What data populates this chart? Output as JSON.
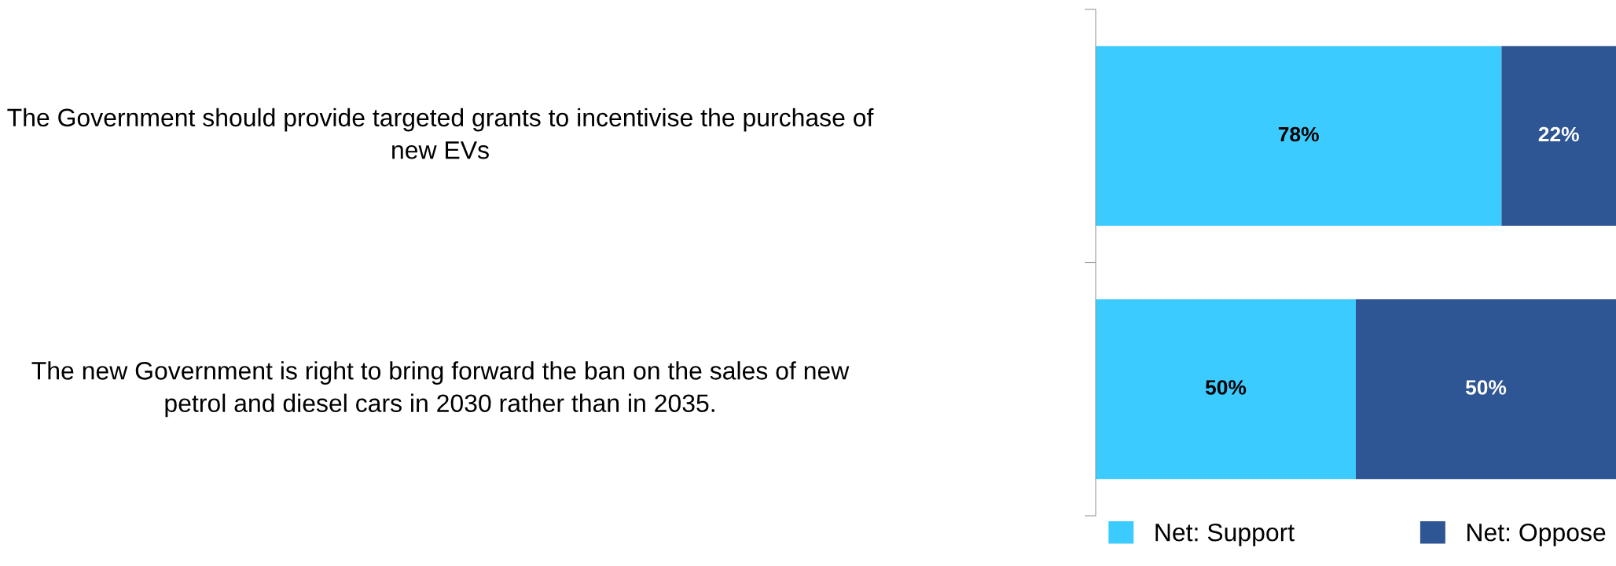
{
  "chart_data": {
    "type": "bar",
    "orientation": "horizontal",
    "stacked": true,
    "categories": [
      "The Government should provide targeted grants to incentivise the purchase of new EVs",
      "The new Government is right to bring forward the ban on the sales of new petrol and diesel cars in 2030 rather than in 2035."
    ],
    "series": [
      {
        "name": "Net: Support",
        "color": "#3ccbff",
        "values": [
          78,
          50
        ],
        "value_labels": [
          "78%",
          "50%"
        ]
      },
      {
        "name": "Net: Oppose",
        "color": "#2e5594",
        "values": [
          22,
          50
        ],
        "value_labels": [
          "22%",
          "50%"
        ]
      }
    ],
    "legend": "bottom",
    "grid": false
  }
}
